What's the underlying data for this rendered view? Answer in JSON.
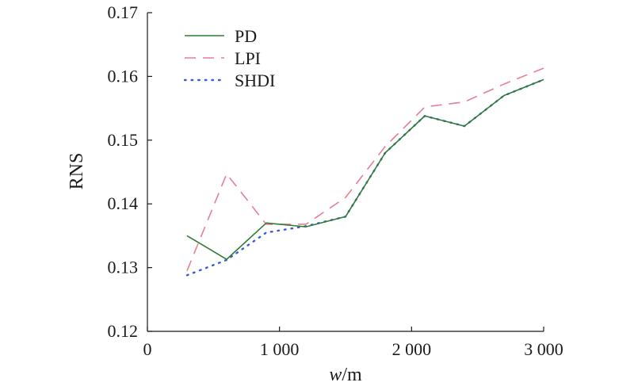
{
  "chart_data": {
    "type": "line",
    "xlabel_italic": "w",
    "xlabel_unit": "/m",
    "ylabel": "RNS",
    "xlim": [
      0,
      3000
    ],
    "ylim": [
      0.12,
      0.17
    ],
    "x_ticks": [
      0,
      1000,
      2000,
      3000
    ],
    "x_tick_labels": [
      "0",
      "1 000",
      "2 000",
      "3 000"
    ],
    "y_ticks": [
      0.12,
      0.13,
      0.14,
      0.15,
      0.16,
      0.17
    ],
    "y_tick_labels": [
      "0.12",
      "0.13",
      "0.14",
      "0.15",
      "0.16",
      "0.17"
    ],
    "grid": false,
    "legend_position": "top-left",
    "x": [
      300,
      600,
      900,
      1200,
      1500,
      1800,
      2100,
      2400,
      2700,
      3000
    ],
    "series": [
      {
        "name": "PD",
        "color": "#2e7d32",
        "style": "solid",
        "values": [
          0.135,
          0.1313,
          0.137,
          0.1364,
          0.138,
          0.148,
          0.1538,
          0.1522,
          0.157,
          0.1595
        ]
      },
      {
        "name": "LPI",
        "color": "#e57f95",
        "style": "dashed",
        "values": [
          0.1295,
          0.1447,
          0.1368,
          0.1368,
          0.141,
          0.149,
          0.1552,
          0.156,
          0.1588,
          0.1613
        ]
      },
      {
        "name": "SHDI",
        "color": "#3b5bd6",
        "style": "dotted",
        "values": [
          0.1288,
          0.1312,
          0.1355,
          0.1365,
          0.138,
          0.148,
          0.1538,
          0.1522,
          0.157,
          0.1595
        ]
      }
    ]
  }
}
